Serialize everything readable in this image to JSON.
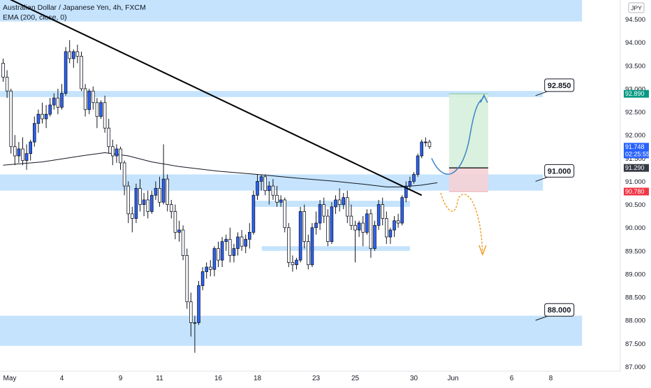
{
  "chart_data": {
    "type": "candlestick",
    "title": "Australian Dollar / Japanese Yen, 4h, FXCM",
    "indicator": "EMA (200, close, 0)",
    "currency": "JPY",
    "ylim": [
      86.85,
      95.2
    ],
    "y_ticks": [
      "94.500",
      "94.000",
      "93.500",
      "93.000",
      "92.500",
      "92.000",
      "91.500",
      "91.000",
      "90.500",
      "90.000",
      "89.500",
      "89.000",
      "88.500",
      "88.000",
      "87.500",
      "87.000"
    ],
    "x_labels": [
      {
        "label": "May",
        "bar": 0
      },
      {
        "label": "4",
        "bar": 15
      },
      {
        "label": "9",
        "bar": 30
      },
      {
        "label": "11",
        "bar": 40
      },
      {
        "label": "16",
        "bar": 55
      },
      {
        "label": "18",
        "bar": 65
      },
      {
        "label": "23",
        "bar": 80
      },
      {
        "label": "25",
        "bar": 90
      },
      {
        "label": "30",
        "bar": 105
      },
      {
        "label": "Jun",
        "bar": 115
      },
      {
        "label": "6",
        "bar": 130
      },
      {
        "label": "8",
        "bar": 140
      }
    ],
    "candles": [
      [
        93.55,
        93.65,
        93.15,
        93.25
      ],
      [
        93.25,
        93.4,
        92.8,
        92.95
      ],
      [
        92.95,
        93.0,
        91.6,
        91.75
      ],
      [
        91.75,
        92.0,
        91.35,
        91.55
      ],
      [
        91.55,
        91.85,
        91.4,
        91.7
      ],
      [
        91.7,
        91.95,
        91.35,
        91.45
      ],
      [
        91.45,
        91.8,
        91.25,
        91.6
      ],
      [
        91.6,
        91.9,
        91.45,
        91.85
      ],
      [
        91.85,
        92.4,
        91.75,
        92.25
      ],
      [
        92.25,
        92.55,
        92.05,
        92.45
      ],
      [
        92.45,
        92.7,
        92.25,
        92.35
      ],
      [
        92.35,
        92.65,
        92.15,
        92.45
      ],
      [
        92.45,
        92.8,
        92.4,
        92.65
      ],
      [
        92.65,
        92.9,
        92.55,
        92.8
      ],
      [
        92.8,
        93.0,
        92.45,
        92.6
      ],
      [
        92.6,
        93.1,
        92.55,
        92.9
      ],
      [
        92.9,
        93.9,
        92.85,
        93.8
      ],
      [
        93.8,
        94.05,
        93.55,
        93.65
      ],
      [
        93.65,
        93.85,
        93.45,
        93.8
      ],
      [
        93.8,
        93.95,
        93.55,
        93.7
      ],
      [
        93.7,
        93.8,
        92.95,
        93.0
      ],
      [
        93.0,
        93.1,
        92.4,
        92.55
      ],
      [
        92.55,
        93.0,
        92.45,
        92.95
      ],
      [
        92.95,
        93.05,
        92.55,
        92.7
      ],
      [
        92.7,
        92.8,
        92.15,
        92.4
      ],
      [
        92.4,
        92.75,
        92.35,
        92.7
      ],
      [
        92.7,
        92.85,
        92.05,
        92.15
      ],
      [
        92.15,
        92.35,
        91.6,
        91.75
      ],
      [
        91.75,
        91.9,
        91.35,
        91.55
      ],
      [
        91.55,
        91.8,
        91.4,
        91.7
      ],
      [
        91.7,
        91.75,
        91.25,
        91.4
      ],
      [
        91.4,
        91.45,
        90.7,
        90.9
      ],
      [
        90.9,
        91.0,
        90.1,
        90.3
      ],
      [
        90.3,
        90.45,
        89.9,
        90.2
      ],
      [
        90.2,
        90.95,
        90.1,
        90.85
      ],
      [
        90.85,
        91.05,
        90.35,
        90.5
      ],
      [
        90.5,
        90.75,
        90.25,
        90.6
      ],
      [
        90.6,
        90.8,
        90.2,
        90.35
      ],
      [
        90.35,
        90.8,
        90.3,
        90.7
      ],
      [
        90.7,
        91.0,
        90.6,
        90.85
      ],
      [
        90.85,
        91.1,
        90.45,
        90.55
      ],
      [
        90.55,
        91.8,
        90.5,
        91.05
      ],
      [
        91.05,
        91.15,
        90.35,
        90.5
      ],
      [
        90.5,
        90.6,
        90.2,
        90.35
      ],
      [
        90.35,
        90.5,
        89.75,
        89.9
      ],
      [
        89.9,
        90.15,
        89.7,
        89.95
      ],
      [
        89.95,
        90.05,
        89.3,
        89.4
      ],
      [
        89.4,
        89.55,
        88.25,
        88.4
      ],
      [
        88.4,
        88.6,
        87.65,
        87.95
      ],
      [
        87.95,
        88.1,
        87.3,
        87.95
      ],
      [
        87.95,
        88.85,
        87.9,
        88.75
      ],
      [
        88.75,
        89.15,
        88.65,
        89.05
      ],
      [
        89.05,
        89.25,
        88.9,
        89.15
      ],
      [
        89.15,
        89.3,
        88.95,
        89.1
      ],
      [
        89.1,
        89.6,
        88.95,
        89.55
      ],
      [
        89.55,
        89.7,
        89.15,
        89.3
      ],
      [
        89.3,
        89.8,
        89.15,
        89.7
      ],
      [
        89.7,
        89.85,
        89.5,
        89.75
      ],
      [
        89.75,
        90.0,
        89.25,
        89.4
      ],
      [
        89.4,
        89.65,
        89.25,
        89.55
      ],
      [
        89.55,
        89.9,
        89.4,
        89.8
      ],
      [
        89.8,
        89.95,
        89.5,
        89.6
      ],
      [
        89.6,
        89.85,
        89.45,
        89.75
      ],
      [
        89.75,
        90.1,
        89.55,
        89.9
      ],
      [
        89.9,
        90.8,
        89.85,
        90.7
      ],
      [
        90.7,
        91.15,
        90.6,
        91.0
      ],
      [
        91.0,
        91.15,
        90.8,
        91.1
      ],
      [
        91.1,
        91.15,
        90.7,
        90.8
      ],
      [
        90.8,
        91.0,
        90.5,
        90.9
      ],
      [
        90.9,
        91.05,
        90.6,
        90.7
      ],
      [
        90.7,
        90.9,
        90.45,
        90.55
      ],
      [
        90.55,
        90.7,
        90.45,
        90.6
      ],
      [
        90.6,
        90.65,
        89.9,
        90.0
      ],
      [
        90.0,
        90.1,
        89.15,
        89.25
      ],
      [
        89.25,
        89.4,
        89.05,
        89.2
      ],
      [
        89.2,
        89.35,
        89.1,
        89.3
      ],
      [
        89.3,
        90.45,
        89.25,
        90.35
      ],
      [
        90.35,
        90.5,
        89.55,
        89.7
      ],
      [
        89.7,
        89.85,
        89.1,
        89.2
      ],
      [
        89.2,
        90.1,
        89.15,
        90.0
      ],
      [
        90.0,
        90.35,
        89.85,
        90.1
      ],
      [
        90.1,
        90.6,
        89.95,
        90.5
      ],
      [
        90.5,
        90.65,
        90.1,
        90.25
      ],
      [
        90.25,
        90.4,
        89.6,
        89.7
      ],
      [
        89.7,
        90.55,
        89.65,
        90.45
      ],
      [
        90.45,
        90.7,
        90.3,
        90.6
      ],
      [
        90.6,
        90.85,
        90.35,
        90.5
      ],
      [
        90.5,
        90.75,
        90.4,
        90.65
      ],
      [
        90.65,
        90.8,
        90.1,
        90.25
      ],
      [
        90.25,
        90.5,
        89.95,
        90.05
      ],
      [
        90.05,
        90.15,
        89.25,
        89.95
      ],
      [
        89.95,
        90.15,
        89.8,
        90.1
      ],
      [
        90.1,
        90.25,
        89.6,
        89.9
      ],
      [
        89.9,
        90.4,
        89.85,
        90.3
      ],
      [
        90.3,
        90.4,
        89.35,
        89.55
      ],
      [
        89.55,
        90.15,
        89.5,
        90.05
      ],
      [
        90.05,
        90.6,
        89.95,
        90.5
      ],
      [
        90.5,
        90.65,
        90.05,
        90.2
      ],
      [
        90.2,
        90.35,
        89.65,
        89.8
      ],
      [
        89.8,
        90.0,
        89.65,
        89.95
      ],
      [
        89.95,
        90.25,
        89.8,
        90.15
      ],
      [
        90.15,
        90.3,
        90.0,
        90.1
      ],
      [
        90.1,
        90.7,
        90.05,
        90.65
      ],
      [
        90.65,
        91.0,
        90.55,
        90.9
      ],
      [
        90.9,
        91.1,
        90.85,
        91.0
      ],
      [
        91.0,
        91.2,
        90.95,
        91.15
      ],
      [
        91.15,
        91.6,
        91.1,
        91.55
      ],
      [
        91.55,
        91.9,
        91.5,
        91.85
      ],
      [
        91.85,
        91.95,
        91.75,
        91.85
      ],
      [
        91.85,
        91.9,
        91.7,
        91.75
      ]
    ],
    "ema_200": [
      [
        0,
        91.35
      ],
      [
        10,
        91.42
      ],
      [
        20,
        91.55
      ],
      [
        26,
        91.62
      ],
      [
        32,
        91.55
      ],
      [
        38,
        91.42
      ],
      [
        45,
        91.32
      ],
      [
        55,
        91.22
      ],
      [
        65,
        91.15
      ],
      [
        75,
        91.07
      ],
      [
        85,
        91.0
      ],
      [
        92,
        90.94
      ],
      [
        98,
        90.88
      ],
      [
        102,
        90.88
      ],
      [
        107,
        90.92
      ],
      [
        111,
        90.97
      ]
    ],
    "trendline": {
      "bar1": 0,
      "price1": 95.0,
      "bar2": 107,
      "price2": 90.7
    },
    "zones": [
      {
        "low": 94.45,
        "high": 95.25,
        "bar1": 0,
        "bar2": 148
      },
      {
        "low": 92.82,
        "high": 92.95,
        "bar1": 0,
        "bar2": 138
      },
      {
        "low": 90.8,
        "high": 91.15,
        "bar1": 0,
        "bar2": 138
      },
      {
        "low": 87.45,
        "high": 88.1,
        "bar1": 0,
        "bar2": 148
      },
      {
        "low": 90.45,
        "high": 90.58,
        "bar1": 65,
        "bar2": 104
      },
      {
        "low": 89.5,
        "high": 89.6,
        "bar1": 67,
        "bar2": 104
      }
    ],
    "position": {
      "entry": 91.29,
      "target": 92.89,
      "stop": 90.78,
      "bar1": 114,
      "bar2": 124
    },
    "level_callouts": [
      {
        "label": "92.850",
        "price": 92.85,
        "bar": 137
      },
      {
        "label": "91.000",
        "price": 91.0,
        "bar": 137
      },
      {
        "label": "88.000",
        "price": 88.0,
        "bar": 137
      }
    ],
    "price_tags": [
      {
        "label": "92.890",
        "price": 92.89,
        "color": "#089981"
      },
      {
        "label": "91.748",
        "sub": "02:25:55",
        "price": 91.748,
        "color": "#2962ff"
      },
      {
        "label": "91.290",
        "price": 91.29,
        "color": "#363a45"
      },
      {
        "label": "90.780",
        "price": 90.78,
        "color": "#f23645"
      }
    ],
    "colors": {
      "up": "#2962ff",
      "down": "#ffffff",
      "wick": "#131722",
      "zone": "#bbdefb",
      "ema": "#131722",
      "trend": "#000000",
      "target_zone": "#d6f0dc",
      "stop_zone": "#f5d0d6",
      "bull_arrow": "#3d85c6",
      "bear_arrow": "#f0a030"
    }
  }
}
